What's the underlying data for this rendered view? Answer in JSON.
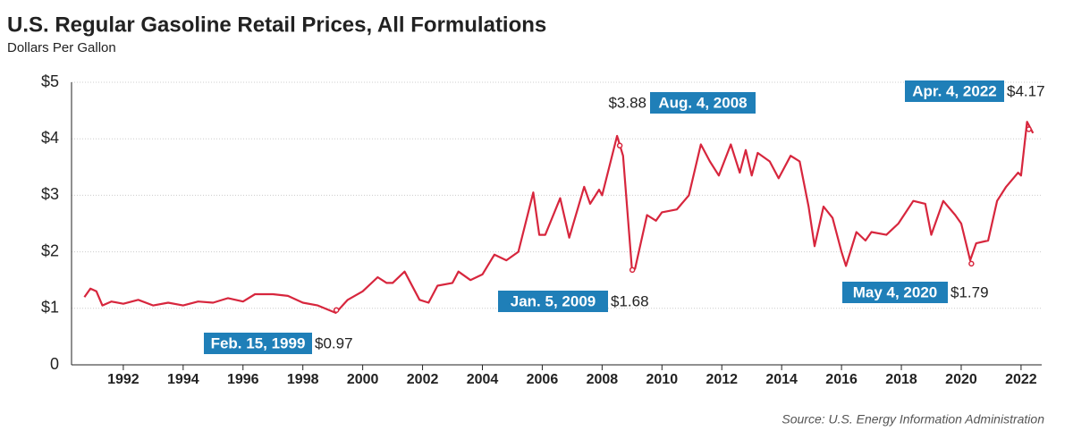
{
  "chart_data": {
    "type": "line",
    "title": "U.S. Regular Gasoline Retail Prices, All Formulations",
    "subtitle": "Dollars Per Gallon",
    "source": "Source: U.S. Energy Information Administration",
    "xlim": [
      1990.27,
      2022.69
    ],
    "xticks": [
      1992,
      1994,
      1996,
      1998,
      2000,
      2002,
      2004,
      2006,
      2008,
      2010,
      2012,
      2014,
      2016,
      2018,
      2020,
      2022
    ],
    "ylim": [
      0,
      5
    ],
    "yticks": [
      0,
      {
        "value": 1,
        "label": "$1"
      },
      {
        "value": 2,
        "label": "$2"
      },
      {
        "value": 3,
        "label": "$3"
      },
      {
        "value": 4,
        "label": "$4"
      },
      {
        "value": 5,
        "label": "$5"
      }
    ],
    "grid": true,
    "series": [
      {
        "color": "#d7263d",
        "x": [
          1990.7,
          1990.9,
          1991.1,
          1991.3,
          1991.6,
          1992.0,
          1992.5,
          1993.0,
          1993.5,
          1994.0,
          1994.5,
          1995.0,
          1995.5,
          1996.0,
          1996.4,
          1997.0,
          1997.5,
          1998.0,
          1998.5,
          1999.1,
          1999.5,
          2000.0,
          2000.5,
          2000.8,
          2001.0,
          2001.4,
          2001.9,
          2002.2,
          2002.5,
          2003.0,
          2003.2,
          2003.6,
          2004.0,
          2004.4,
          2004.8,
          2005.2,
          2005.7,
          2005.9,
          2006.1,
          2006.6,
          2006.9,
          2007.4,
          2007.6,
          2007.9,
          2008.0,
          2008.5,
          2008.7,
          2009.0,
          2009.1,
          2009.5,
          2009.8,
          2010.0,
          2010.5,
          2010.9,
          2011.3,
          2011.6,
          2011.9,
          2012.3,
          2012.6,
          2012.8,
          2013.0,
          2013.2,
          2013.6,
          2013.9,
          2014.3,
          2014.6,
          2014.9,
          2015.1,
          2015.4,
          2015.7,
          2016.0,
          2016.15,
          2016.5,
          2016.8,
          2017.0,
          2017.5,
          2017.9,
          2018.4,
          2018.8,
          2019.0,
          2019.4,
          2019.8,
          2020.0,
          2020.3,
          2020.5,
          2020.9,
          2021.2,
          2021.5,
          2021.9,
          2022.0,
          2022.2,
          2022.4
        ],
        "values": [
          1.2,
          1.35,
          1.3,
          1.05,
          1.12,
          1.08,
          1.15,
          1.05,
          1.1,
          1.05,
          1.12,
          1.1,
          1.18,
          1.12,
          1.25,
          1.25,
          1.22,
          1.1,
          1.05,
          0.92,
          1.15,
          1.3,
          1.55,
          1.45,
          1.45,
          1.65,
          1.15,
          1.1,
          1.4,
          1.45,
          1.65,
          1.5,
          1.6,
          1.95,
          1.85,
          2.0,
          3.05,
          2.3,
          2.3,
          2.95,
          2.25,
          3.15,
          2.85,
          3.1,
          3.0,
          4.05,
          3.7,
          1.68,
          1.7,
          2.65,
          2.55,
          2.7,
          2.75,
          3.0,
          3.9,
          3.6,
          3.35,
          3.9,
          3.4,
          3.8,
          3.35,
          3.75,
          3.6,
          3.3,
          3.7,
          3.6,
          2.8,
          2.1,
          2.8,
          2.6,
          2.0,
          1.75,
          2.35,
          2.2,
          2.35,
          2.3,
          2.5,
          2.9,
          2.85,
          2.3,
          2.9,
          2.65,
          2.5,
          1.85,
          2.15,
          2.2,
          2.9,
          3.15,
          3.4,
          3.35,
          4.3,
          4.1
        ]
      }
    ],
    "annotations": [
      {
        "x": 1999.12,
        "y": 0.97,
        "date": "Feb. 15, 1999",
        "value_label": "$0.97"
      },
      {
        "x": 2008.59,
        "y": 3.88,
        "date": "Aug. 4, 2008",
        "value_label": "$3.88"
      },
      {
        "x": 2009.01,
        "y": 1.68,
        "date": "Jan. 5, 2009",
        "value_label": "$1.68"
      },
      {
        "x": 2020.34,
        "y": 1.79,
        "date": "May 4, 2020",
        "value_label": "$1.79"
      },
      {
        "x": 2022.26,
        "y": 4.17,
        "date": "Apr. 4, 2022",
        "value_label": "$4.17"
      }
    ]
  }
}
